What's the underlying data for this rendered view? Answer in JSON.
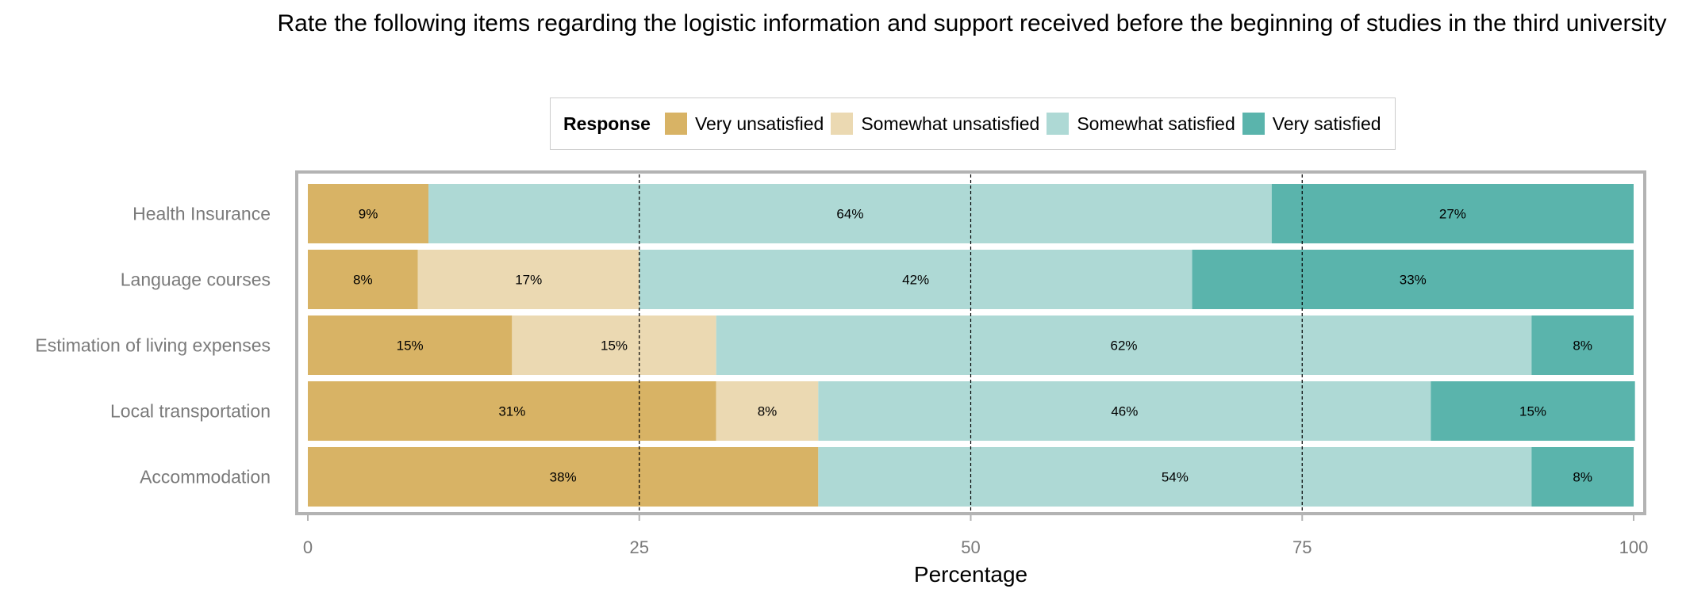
{
  "chart_data": {
    "type": "bar",
    "orientation": "horizontal",
    "stacked": true,
    "title": "Rate the following items regarding the logistic information and support received before the beginning of studies in the third university",
    "xlabel": "Percentage",
    "ylabel": "",
    "xlim": [
      0,
      100
    ],
    "xticks": [
      0,
      25,
      50,
      75,
      100
    ],
    "reference_lines": [
      25,
      50,
      75
    ],
    "legend": {
      "title": "Response",
      "placement": "top",
      "entries": [
        "Very unsatisfied",
        "Somewhat unsatisfied",
        "Somewhat satisfied",
        "Very satisfied"
      ]
    },
    "categories": [
      "Health Insurance",
      "Language courses",
      "Estimation of living expenses",
      "Local transportation",
      "Accommodation"
    ],
    "series": [
      {
        "name": "Very unsatisfied",
        "color": "#D8B365",
        "values": [
          9.1,
          8.3,
          15.4,
          30.8,
          38.5
        ],
        "labels": [
          "9%",
          "8%",
          "15%",
          "31%",
          "38%"
        ]
      },
      {
        "name": "Somewhat unsatisfied",
        "color": "#EBD9B2",
        "values": [
          0,
          16.7,
          15.4,
          7.7,
          0
        ],
        "labels": [
          "",
          "17%",
          "15%",
          "8%",
          ""
        ]
      },
      {
        "name": "Somewhat satisfied",
        "color": "#AED9D5",
        "values": [
          63.6,
          41.7,
          61.5,
          46.2,
          53.8
        ],
        "labels": [
          "64%",
          "42%",
          "62%",
          "46%",
          "54%"
        ]
      },
      {
        "name": "Very satisfied",
        "color": "#5AB4AC",
        "values": [
          27.3,
          33.3,
          7.7,
          15.4,
          7.7
        ],
        "labels": [
          "27%",
          "33%",
          "8%",
          "15%",
          "8%"
        ]
      }
    ],
    "grid": false
  }
}
